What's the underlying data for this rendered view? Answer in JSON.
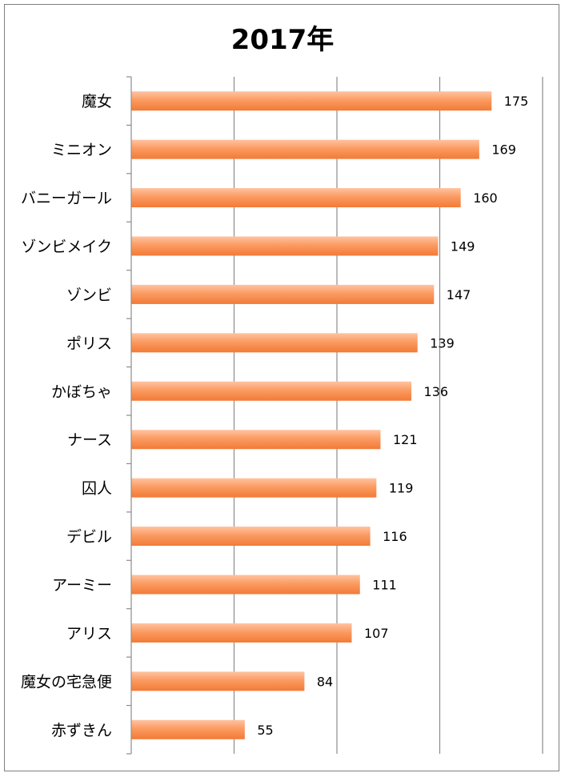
{
  "chart_data": {
    "type": "bar",
    "orientation": "horizontal",
    "title": "2017年",
    "categories": [
      "魔女",
      "ミニオン",
      "バニーガール",
      "ゾンビメイク",
      "ゾンビ",
      "ポリス",
      "かぼちゃ",
      "ナース",
      "囚人",
      "デビル",
      "アーミー",
      "アリス",
      "魔女の宅急便",
      "赤ずきん"
    ],
    "values": [
      175,
      169,
      160,
      149,
      147,
      139,
      136,
      121,
      119,
      116,
      111,
      107,
      84,
      55
    ],
    "xlim": [
      0,
      200
    ],
    "grid": true,
    "bar_color": "#f7894a",
    "data_labels": true
  }
}
